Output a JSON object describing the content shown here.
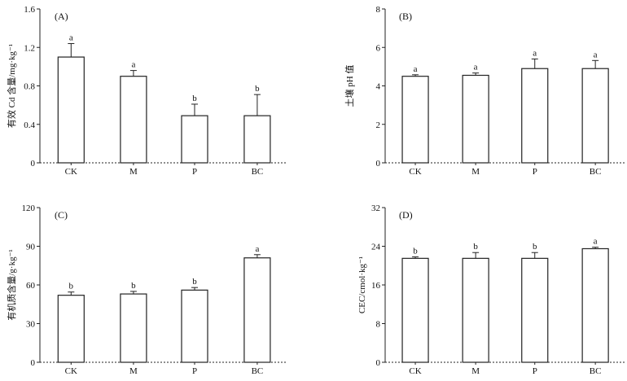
{
  "chart_data": [
    {
      "type": "bar",
      "panel_label": "(A)",
      "ylabel": "有效 Cd 含量/mg·kg⁻¹",
      "categories": [
        "CK",
        "M",
        "P",
        "BC"
      ],
      "values": [
        1.1,
        0.9,
        0.49,
        0.49
      ],
      "errors": [
        0.14,
        0.06,
        0.12,
        0.22
      ],
      "significance": [
        "a",
        "a",
        "b",
        "b"
      ],
      "ylim": [
        0,
        1.6
      ],
      "yticks": [
        "0",
        "0.4",
        "0.8",
        "1.2",
        "1.6"
      ],
      "ytick_values": [
        0,
        0.4,
        0.8,
        1.2,
        1.6
      ]
    },
    {
      "type": "bar",
      "panel_label": "(B)",
      "ylabel": "土壤 pH 值",
      "categories": [
        "CK",
        "M",
        "P",
        "BC"
      ],
      "values": [
        4.5,
        4.55,
        4.9,
        4.9
      ],
      "errors": [
        0.08,
        0.12,
        0.5,
        0.42
      ],
      "significance": [
        "a",
        "a",
        "a",
        "a"
      ],
      "ylim": [
        0,
        8
      ],
      "yticks": [
        "0",
        "2",
        "4",
        "6",
        "8"
      ],
      "ytick_values": [
        0,
        2,
        4,
        6,
        8
      ]
    },
    {
      "type": "bar",
      "panel_label": "(C)",
      "ylabel": "有机质含量/g·kg⁻¹",
      "categories": [
        "CK",
        "M",
        "P",
        "BC"
      ],
      "values": [
        52,
        53,
        56,
        81
      ],
      "errors": [
        2.5,
        2.0,
        2.0,
        2.5
      ],
      "significance": [
        "b",
        "b",
        "b",
        "a"
      ],
      "ylim": [
        0,
        120
      ],
      "yticks": [
        "0",
        "30",
        "60",
        "90",
        "120"
      ],
      "ytick_values": [
        0,
        30,
        60,
        90,
        120
      ]
    },
    {
      "type": "bar",
      "panel_label": "(D)",
      "ylabel": "CEC/cmol·kg⁻¹",
      "categories": [
        "CK",
        "M",
        "P",
        "BC"
      ],
      "values": [
        21.5,
        21.5,
        21.5,
        23.5
      ],
      "errors": [
        0.3,
        1.2,
        1.2,
        0.3
      ],
      "significance": [
        "b",
        "b",
        "b",
        "a"
      ],
      "ylim": [
        0,
        32
      ],
      "yticks": [
        "0",
        "8",
        "16",
        "24",
        "32"
      ],
      "ytick_values": [
        0,
        8,
        16,
        24,
        32
      ]
    }
  ]
}
